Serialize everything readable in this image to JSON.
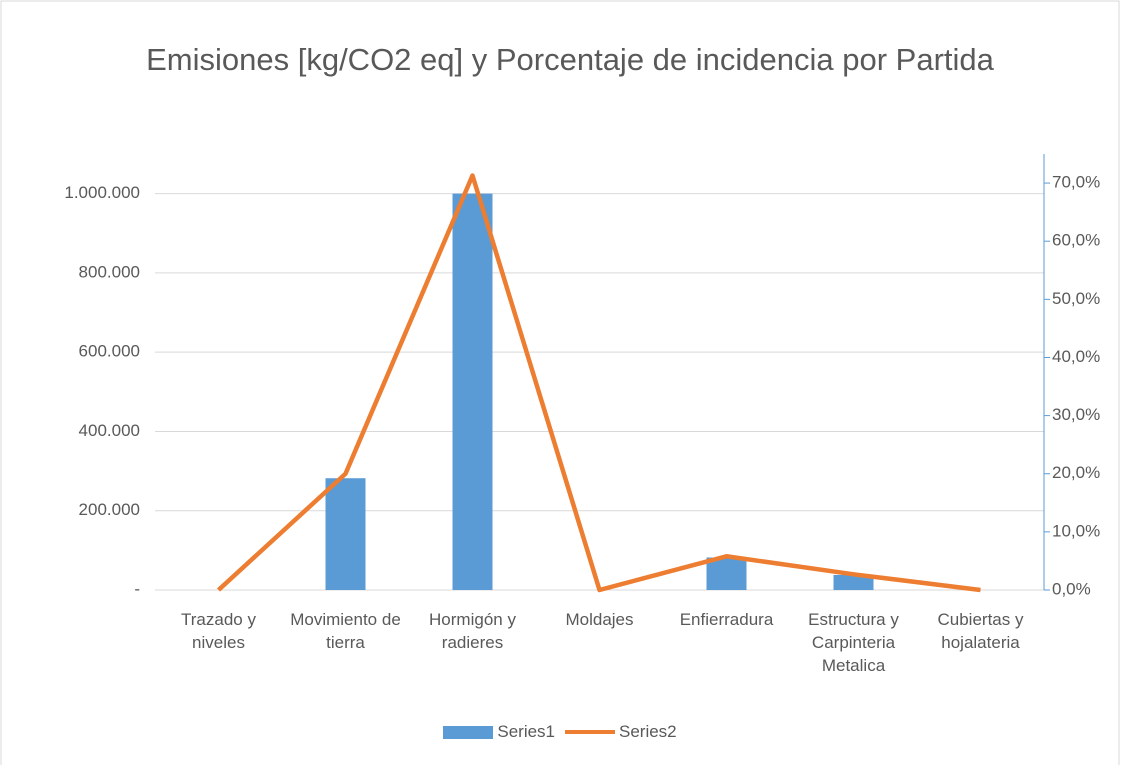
{
  "chart_data": {
    "type": "bar+line",
    "title": "Emisiones [kg/CO2 eq] y Porcentaje de incidencia por Partida",
    "categories": [
      "Trazado y niveles",
      "Movimiento de tierra",
      "Hormigón y radieres",
      "Moldajes",
      "Enfierradura",
      "Estructura y Carpinteria Metalica",
      "Cubiertas y hojalateria"
    ],
    "series": [
      {
        "name": "Series1",
        "type": "bar",
        "color": "#5b9bd5",
        "values": [
          0,
          282000,
          1000000,
          0,
          82000,
          38000,
          0
        ]
      },
      {
        "name": "Series2",
        "type": "line",
        "axis": "y2",
        "color": "#ed7d31",
        "values": [
          0,
          20.0,
          71.3,
          0,
          5.8,
          2.7,
          0
        ]
      }
    ],
    "ylim": [
      0,
      1100000
    ],
    "yticks": [
      {
        "value": 0,
        "label": "-"
      },
      {
        "value": 200000,
        "label": "200.000"
      },
      {
        "value": 400000,
        "label": "400.000"
      },
      {
        "value": 600000,
        "label": "600.000"
      },
      {
        "value": 800000,
        "label": "800.000"
      },
      {
        "value": 1000000,
        "label": "1.000.000"
      }
    ],
    "y2lim": [
      0,
      75
    ],
    "y2ticks": [
      {
        "value": 0,
        "label": "0,0%"
      },
      {
        "value": 10,
        "label": "10,0%"
      },
      {
        "value": 20,
        "label": "20,0%"
      },
      {
        "value": 30,
        "label": "30,0%"
      },
      {
        "value": 40,
        "label": "40,0%"
      },
      {
        "value": 50,
        "label": "50,0%"
      },
      {
        "value": 60,
        "label": "60,0%"
      },
      {
        "value": 70,
        "label": "70,0%"
      }
    ],
    "grid": true,
    "legend": "bottom"
  }
}
